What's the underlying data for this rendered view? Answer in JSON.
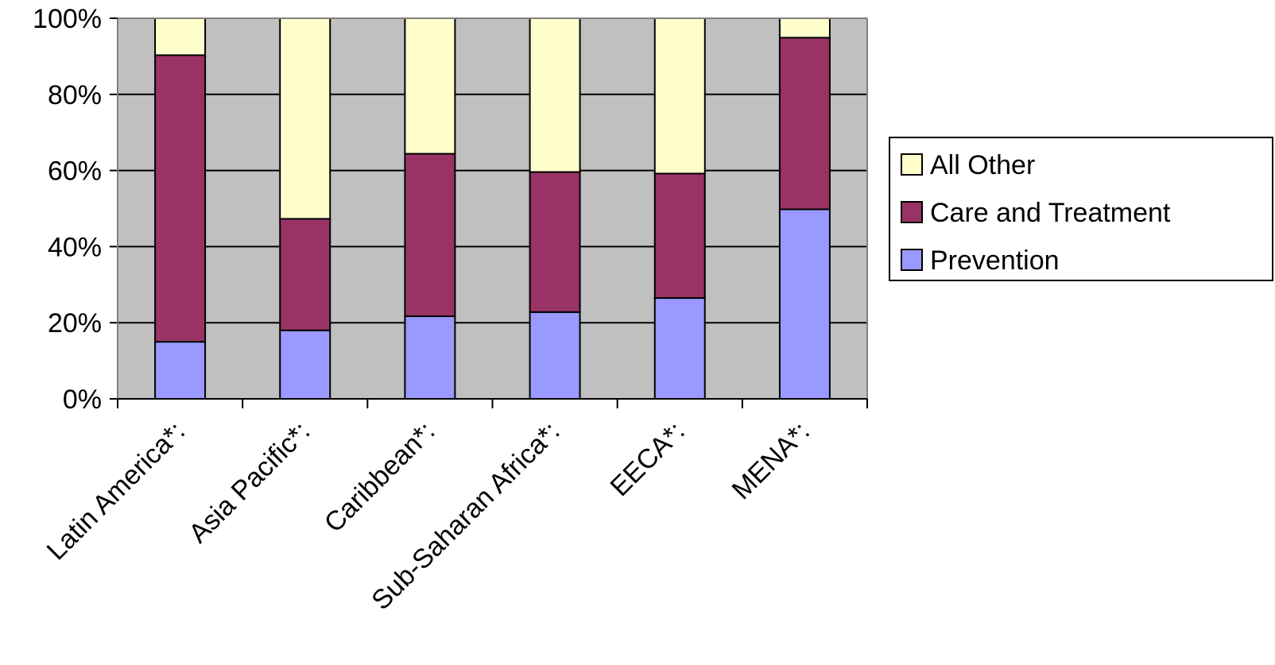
{
  "chart_data": {
    "type": "bar",
    "stacked": true,
    "percent": true,
    "categories": [
      "Latin America*:",
      "Asia Pacific*:",
      "Caribbean*:",
      "Sub-Saharan Africa*:",
      "EECA*:",
      "MENA*:"
    ],
    "series": [
      {
        "name": "Prevention",
        "color": "#9999ff",
        "values": [
          15,
          18,
          21.7,
          22.8,
          26.5,
          49.8
        ]
      },
      {
        "name": "Care and Treatment",
        "color": "#993366",
        "values": [
          75.3,
          29.3,
          42.7,
          36.8,
          32.7,
          45.1
        ]
      },
      {
        "name": "All Other",
        "color": "#ffffcc",
        "values": [
          9.7,
          52.7,
          35.6,
          40.4,
          40.8,
          5.1
        ]
      }
    ],
    "y_ticks": [
      "0%",
      "20%",
      "40%",
      "60%",
      "80%",
      "100%"
    ],
    "ylim": [
      0,
      100
    ],
    "grid": true,
    "plot_background": "#c0c0c0",
    "legend": {
      "position": "right",
      "order": [
        "All Other",
        "Care and Treatment",
        "Prevention"
      ]
    }
  }
}
